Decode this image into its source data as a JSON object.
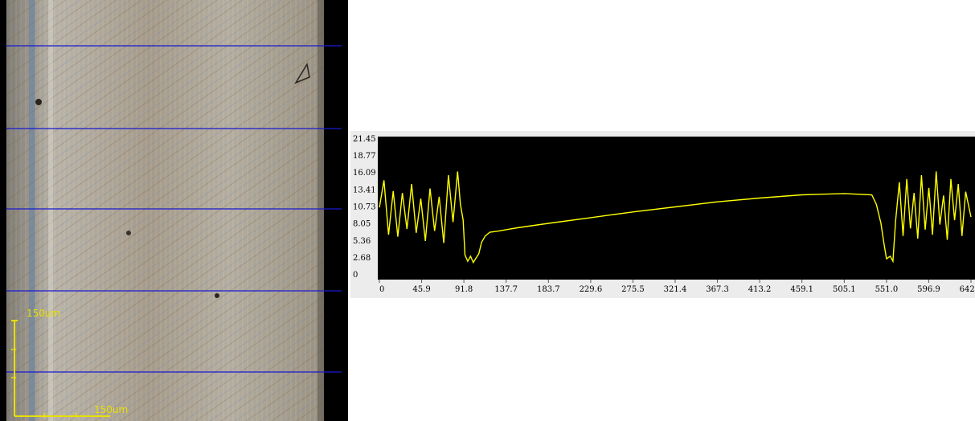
{
  "micrograph": {
    "scale_bar_vertical_label": "150um",
    "scale_bar_horizontal_label": "150um",
    "colors": {
      "scale_bar": "#e8e000",
      "grid_lines": "#1a1ad0"
    }
  },
  "chart_data": {
    "type": "line",
    "title": "",
    "xlabel": "",
    "ylabel": "",
    "x_ticks": [
      "0",
      "45.9",
      "91.8",
      "137.7",
      "183.7",
      "229.6",
      "275.5",
      "321.4",
      "367.3",
      "413.2",
      "459.1",
      "505.1",
      "551.0",
      "596.9",
      "642.8"
    ],
    "y_ticks": [
      "0",
      "2.68",
      "5.36",
      "8.05",
      "10.73",
      "13.41",
      "16.09",
      "18.77",
      "21.45"
    ],
    "xlim": [
      0,
      642.8
    ],
    "ylim": [
      0,
      21.45
    ],
    "line_color": "#ffff00",
    "background": "#000000",
    "series": [
      {
        "points": [
          [
            0,
            10.5
          ],
          [
            5,
            14.8
          ],
          [
            10,
            6.2
          ],
          [
            15,
            13.1
          ],
          [
            20,
            5.9
          ],
          [
            25,
            12.8
          ],
          [
            30,
            7.1
          ],
          [
            35,
            14.2
          ],
          [
            40,
            6.5
          ],
          [
            45,
            11.9
          ],
          [
            50,
            5.2
          ],
          [
            55,
            13.5
          ],
          [
            60,
            6.8
          ],
          [
            65,
            12.2
          ],
          [
            70,
            4.9
          ],
          [
            75,
            15.6
          ],
          [
            80,
            8.2
          ],
          [
            85,
            16.2
          ],
          [
            88,
            11.0
          ],
          [
            91,
            8.5
          ],
          [
            93,
            3.0
          ],
          [
            96,
            2.0
          ],
          [
            99,
            2.8
          ],
          [
            102,
            1.8
          ],
          [
            105,
            2.5
          ],
          [
            108,
            3.2
          ],
          [
            111,
            5.0
          ],
          [
            115,
            6.0
          ],
          [
            120,
            6.6
          ],
          [
            130,
            6.8
          ],
          [
            150,
            7.3
          ],
          [
            183.7,
            8.0
          ],
          [
            229.6,
            8.9
          ],
          [
            275.5,
            9.8
          ],
          [
            321.4,
            10.6
          ],
          [
            367.3,
            11.4
          ],
          [
            413.2,
            12.0
          ],
          [
            459.1,
            12.5
          ],
          [
            505.1,
            12.7
          ],
          [
            535,
            12.5
          ],
          [
            540,
            11.0
          ],
          [
            545,
            8.0
          ],
          [
            548,
            5.0
          ],
          [
            551,
            2.4
          ],
          [
            555,
            2.8
          ],
          [
            558,
            2.0
          ],
          [
            561,
            8.5
          ],
          [
            565,
            14.5
          ],
          [
            569,
            6.0
          ],
          [
            573,
            15.0
          ],
          [
            577,
            7.2
          ],
          [
            581,
            12.8
          ],
          [
            585,
            5.6
          ],
          [
            589,
            15.6
          ],
          [
            593,
            7.0
          ],
          [
            597,
            13.6
          ],
          [
            601,
            6.2
          ],
          [
            605,
            16.2
          ],
          [
            609,
            7.8
          ],
          [
            613,
            12.4
          ],
          [
            617,
            5.4
          ],
          [
            621,
            15.0
          ],
          [
            625,
            8.5
          ],
          [
            629,
            14.2
          ],
          [
            633,
            6.0
          ],
          [
            637,
            13.0
          ],
          [
            642.8,
            9.0
          ]
        ]
      }
    ]
  }
}
